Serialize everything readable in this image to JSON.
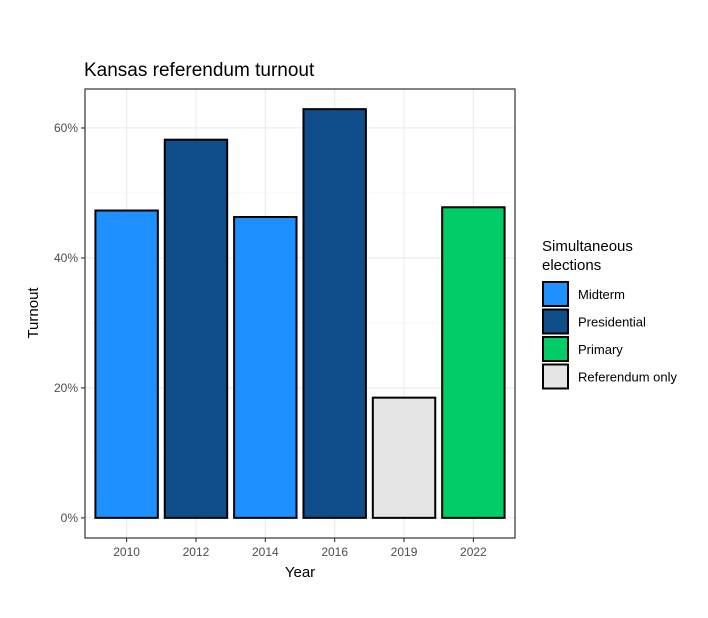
{
  "chart_data": {
    "type": "bar",
    "title": "Kansas referendum turnout",
    "xlabel": "Year",
    "ylabel": "Turnout",
    "categories": [
      "2010",
      "2012",
      "2014",
      "2016",
      "2019",
      "2022"
    ],
    "values": [
      47.3,
      58.2,
      46.3,
      62.9,
      18.5,
      47.8
    ],
    "bar_groups": [
      "Midterm",
      "Presidential",
      "Midterm",
      "Presidential",
      "Referendum only",
      "Primary"
    ],
    "ylim": [
      -3.1,
      66.0
    ],
    "yticks": [
      0,
      20,
      40,
      60
    ],
    "ytick_labels": [
      "0%",
      "20%",
      "40%",
      "60%"
    ],
    "grid": true,
    "legend": {
      "title_lines": [
        "Simultaneous",
        "elections"
      ],
      "placement": "right",
      "entries": [
        {
          "label": "Midterm",
          "color": "#1E90FF"
        },
        {
          "label": "Presidential",
          "color": "#104E8B"
        },
        {
          "label": "Primary",
          "color": "#00CD66"
        },
        {
          "label": "Referendum only",
          "color": "#E5E5E5"
        }
      ]
    }
  }
}
